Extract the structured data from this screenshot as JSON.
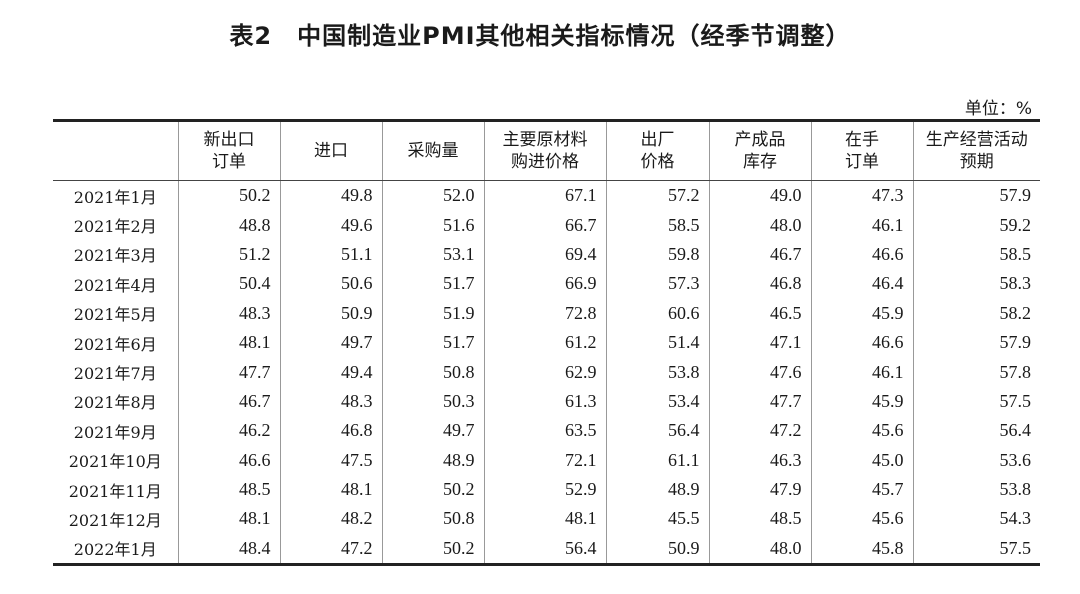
{
  "title": "表2　中国制造业PMI其他相关指标情况（经季节调整）",
  "unit": "单位：%",
  "table": {
    "columns": [
      [
        "新出口",
        "订单"
      ],
      [
        "进口"
      ],
      [
        "采购量"
      ],
      [
        "主要原材料",
        "购进价格"
      ],
      [
        "出厂",
        "价格"
      ],
      [
        "产成品",
        "库存"
      ],
      [
        "在手",
        "订单"
      ],
      [
        "生产经营活动",
        "预期"
      ]
    ],
    "rows": [
      [
        "2021年1月",
        "50.2",
        "49.8",
        "52.0",
        "67.1",
        "57.2",
        "49.0",
        "47.3",
        "57.9"
      ],
      [
        "2021年2月",
        "48.8",
        "49.6",
        "51.6",
        "66.7",
        "58.5",
        "48.0",
        "46.1",
        "59.2"
      ],
      [
        "2021年3月",
        "51.2",
        "51.1",
        "53.1",
        "69.4",
        "59.8",
        "46.7",
        "46.6",
        "58.5"
      ],
      [
        "2021年4月",
        "50.4",
        "50.6",
        "51.7",
        "66.9",
        "57.3",
        "46.8",
        "46.4",
        "58.3"
      ],
      [
        "2021年5月",
        "48.3",
        "50.9",
        "51.9",
        "72.8",
        "60.6",
        "46.5",
        "45.9",
        "58.2"
      ],
      [
        "2021年6月",
        "48.1",
        "49.7",
        "51.7",
        "61.2",
        "51.4",
        "47.1",
        "46.6",
        "57.9"
      ],
      [
        "2021年7月",
        "47.7",
        "49.4",
        "50.8",
        "62.9",
        "53.8",
        "47.6",
        "46.1",
        "57.8"
      ],
      [
        "2021年8月",
        "46.7",
        "48.3",
        "50.3",
        "61.3",
        "53.4",
        "47.7",
        "45.9",
        "57.5"
      ],
      [
        "2021年9月",
        "46.2",
        "46.8",
        "49.7",
        "63.5",
        "56.4",
        "47.2",
        "45.6",
        "56.4"
      ],
      [
        "2021年10月",
        "46.6",
        "47.5",
        "48.9",
        "72.1",
        "61.1",
        "46.3",
        "45.0",
        "53.6"
      ],
      [
        "2021年11月",
        "48.5",
        "48.1",
        "50.2",
        "52.9",
        "48.9",
        "47.9",
        "45.7",
        "53.8"
      ],
      [
        "2021年12月",
        "48.1",
        "48.2",
        "50.8",
        "48.1",
        "45.5",
        "48.5",
        "45.6",
        "54.3"
      ],
      [
        "2022年1月",
        "48.4",
        "47.2",
        "50.2",
        "56.4",
        "50.9",
        "48.0",
        "45.8",
        "57.5"
      ]
    ]
  }
}
